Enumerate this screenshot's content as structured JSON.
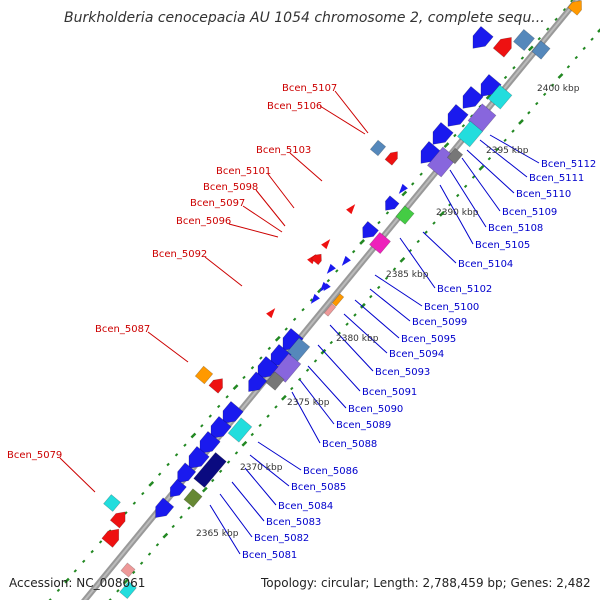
{
  "title": "Burkholderia cenocepacia AU 1054 chromosome 2, complete sequ...",
  "footer": {
    "accession": "Accession: NC_008061",
    "topology": "Topology: circular; Length: 2,788,459 bp; Genes: 2,482"
  },
  "colors": {
    "forward_label": "#cc0000",
    "reverse_label": "#0000cc",
    "backbone": "#999999",
    "tick_dot": "#228822",
    "gene_blue": "#1a1aee",
    "gene_red": "#ee1111",
    "gene_navy": "#0a0a80",
    "gene_cyan": "#22dddd",
    "gene_purple": "#8866dd",
    "gene_steel": "#5588bb",
    "gene_green": "#44cc44",
    "gene_magenta": "#ee22bb",
    "gene_orange": "#ff9900",
    "gene_olive": "#668833",
    "gene_gray": "#777777",
    "gene_pink": "#ee9999"
  },
  "kbp_labels": [
    "2400 kbp",
    "2395 kbp",
    "2390 kbp",
    "2385 kbp",
    "2380 kbp",
    "2375 kbp",
    "2370 kbp",
    "2365 kbp"
  ],
  "forward_genes": [
    "Bcen_5107",
    "Bcen_5106",
    "Bcen_5103",
    "Bcen_5101",
    "Bcen_5098",
    "Bcen_5097",
    "Bcen_5096",
    "Bcen_5092",
    "Bcen_5087",
    "Bcen_5079"
  ],
  "reverse_genes": [
    "Bcen_5112",
    "Bcen_5111",
    "Bcen_5110",
    "Bcen_5109",
    "Bcen_5108",
    "Bcen_5105",
    "Bcen_5104",
    "Bcen_5102",
    "Bcen_5100",
    "Bcen_5099",
    "Bcen_5095",
    "Bcen_5094",
    "Bcen_5093",
    "Bcen_5091",
    "Bcen_5090",
    "Bcen_5089",
    "Bcen_5088",
    "Bcen_5086",
    "Bcen_5085",
    "Bcen_5084",
    "Bcen_5083",
    "Bcen_5082",
    "Bcen_5081"
  ]
}
